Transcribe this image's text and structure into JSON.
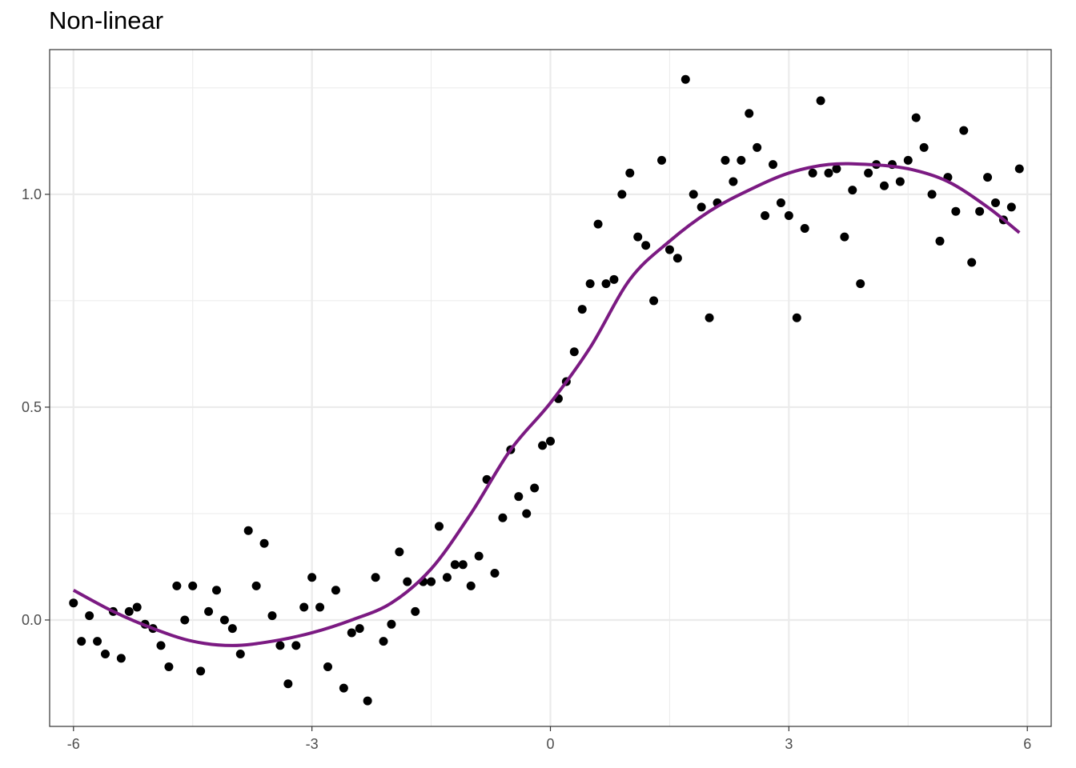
{
  "chart_data": {
    "type": "scatter",
    "title": "Non-linear",
    "xlabel": "",
    "ylabel": "",
    "xlim": [
      -6.3,
      6.3
    ],
    "ylim": [
      -0.25,
      1.34
    ],
    "x_ticks": [
      -6,
      -3,
      0,
      3,
      6
    ],
    "x_tick_labels": [
      "-6",
      "-3",
      "0",
      "3",
      "6"
    ],
    "y_ticks": [
      0,
      0.5,
      1
    ],
    "y_tick_labels": [
      "0.0",
      "0.5",
      "1.0"
    ],
    "grid": true,
    "points": [
      [
        -6.0,
        0.04
      ],
      [
        -5.9,
        -0.05
      ],
      [
        -5.8,
        0.01
      ],
      [
        -5.7,
        -0.05
      ],
      [
        -5.6,
        -0.08
      ],
      [
        -5.5,
        0.02
      ],
      [
        -5.4,
        -0.09
      ],
      [
        -5.3,
        0.02
      ],
      [
        -5.2,
        0.03
      ],
      [
        -5.1,
        -0.01
      ],
      [
        -5.0,
        -0.02
      ],
      [
        -4.9,
        -0.06
      ],
      [
        -4.8,
        -0.11
      ],
      [
        -4.7,
        0.08
      ],
      [
        -4.6,
        0.0
      ],
      [
        -4.5,
        0.08
      ],
      [
        -4.4,
        -0.12
      ],
      [
        -4.3,
        0.02
      ],
      [
        -4.2,
        0.07
      ],
      [
        -4.1,
        0.0
      ],
      [
        -4.0,
        -0.02
      ],
      [
        -3.9,
        -0.08
      ],
      [
        -3.8,
        0.21
      ],
      [
        -3.7,
        0.08
      ],
      [
        -3.6,
        0.18
      ],
      [
        -3.5,
        0.01
      ],
      [
        -3.4,
        -0.06
      ],
      [
        -3.3,
        -0.15
      ],
      [
        -3.2,
        -0.06
      ],
      [
        -3.1,
        0.03
      ],
      [
        -3.0,
        0.1
      ],
      [
        -2.9,
        0.03
      ],
      [
        -2.8,
        -0.11
      ],
      [
        -2.7,
        0.07
      ],
      [
        -2.6,
        -0.16
      ],
      [
        -2.5,
        -0.03
      ],
      [
        -2.4,
        -0.02
      ],
      [
        -2.3,
        -0.19
      ],
      [
        -2.2,
        0.1
      ],
      [
        -2.1,
        -0.05
      ],
      [
        -2.0,
        -0.01
      ],
      [
        -1.9,
        0.16
      ],
      [
        -1.8,
        0.09
      ],
      [
        -1.7,
        0.02
      ],
      [
        -1.6,
        0.09
      ],
      [
        -1.5,
        0.09
      ],
      [
        -1.4,
        0.22
      ],
      [
        -1.3,
        0.1
      ],
      [
        -1.2,
        0.13
      ],
      [
        -1.1,
        0.13
      ],
      [
        -1.0,
        0.08
      ],
      [
        -0.9,
        0.15
      ],
      [
        -0.8,
        0.33
      ],
      [
        -0.7,
        0.11
      ],
      [
        -0.6,
        0.24
      ],
      [
        -0.5,
        0.4
      ],
      [
        -0.4,
        0.29
      ],
      [
        -0.3,
        0.25
      ],
      [
        -0.2,
        0.31
      ],
      [
        -0.1,
        0.41
      ],
      [
        0.0,
        0.42
      ],
      [
        0.1,
        0.52
      ],
      [
        0.2,
        0.56
      ],
      [
        0.3,
        0.63
      ],
      [
        0.4,
        0.73
      ],
      [
        0.5,
        0.79
      ],
      [
        0.6,
        0.93
      ],
      [
        0.7,
        0.79
      ],
      [
        0.8,
        0.8
      ],
      [
        0.9,
        1.0
      ],
      [
        1.0,
        1.05
      ],
      [
        1.1,
        0.9
      ],
      [
        1.2,
        0.88
      ],
      [
        1.3,
        0.75
      ],
      [
        1.4,
        1.08
      ],
      [
        1.5,
        0.87
      ],
      [
        1.6,
        0.85
      ],
      [
        1.7,
        1.27
      ],
      [
        1.8,
        1.0
      ],
      [
        1.9,
        0.97
      ],
      [
        2.0,
        0.71
      ],
      [
        2.1,
        0.98
      ],
      [
        2.2,
        1.08
      ],
      [
        2.3,
        1.03
      ],
      [
        2.4,
        1.08
      ],
      [
        2.5,
        1.19
      ],
      [
        2.6,
        1.11
      ],
      [
        2.7,
        0.95
      ],
      [
        2.8,
        1.07
      ],
      [
        2.9,
        0.98
      ],
      [
        3.0,
        0.95
      ],
      [
        3.1,
        0.71
      ],
      [
        3.2,
        0.92
      ],
      [
        3.3,
        1.05
      ],
      [
        3.4,
        1.22
      ],
      [
        3.5,
        1.05
      ],
      [
        3.6,
        1.06
      ],
      [
        3.7,
        0.9
      ],
      [
        3.8,
        1.01
      ],
      [
        3.9,
        0.79
      ],
      [
        4.0,
        1.05
      ],
      [
        4.1,
        1.07
      ],
      [
        4.2,
        1.02
      ],
      [
        4.3,
        1.07
      ],
      [
        4.4,
        1.03
      ],
      [
        4.5,
        1.08
      ],
      [
        4.6,
        1.18
      ],
      [
        4.7,
        1.11
      ],
      [
        4.8,
        1.0
      ],
      [
        4.9,
        0.89
      ],
      [
        5.0,
        1.04
      ],
      [
        5.1,
        0.96
      ],
      [
        5.2,
        1.15
      ],
      [
        5.3,
        0.84
      ],
      [
        5.4,
        0.96
      ],
      [
        5.5,
        1.04
      ],
      [
        5.6,
        0.98
      ],
      [
        5.7,
        0.94
      ],
      [
        5.8,
        0.97
      ],
      [
        5.9,
        1.06
      ]
    ],
    "fit_line": {
      "color": "#7b1a82",
      "x": [
        -6.0,
        -5.5,
        -5.0,
        -4.5,
        -4.0,
        -3.5,
        -3.0,
        -2.5,
        -2.0,
        -1.5,
        -1.0,
        -0.5,
        0.0,
        0.5,
        1.0,
        1.5,
        2.0,
        2.5,
        3.0,
        3.5,
        4.0,
        4.5,
        5.0,
        5.5,
        5.9
      ],
      "y": [
        0.07,
        0.02,
        -0.02,
        -0.05,
        -0.06,
        -0.05,
        -0.03,
        0.0,
        0.04,
        0.12,
        0.25,
        0.4,
        0.51,
        0.64,
        0.8,
        0.89,
        0.96,
        1.01,
        1.05,
        1.07,
        1.07,
        1.06,
        1.03,
        0.97,
        0.91
      ]
    },
    "point_color": "#000000",
    "grid_color": "#ebebeb"
  }
}
